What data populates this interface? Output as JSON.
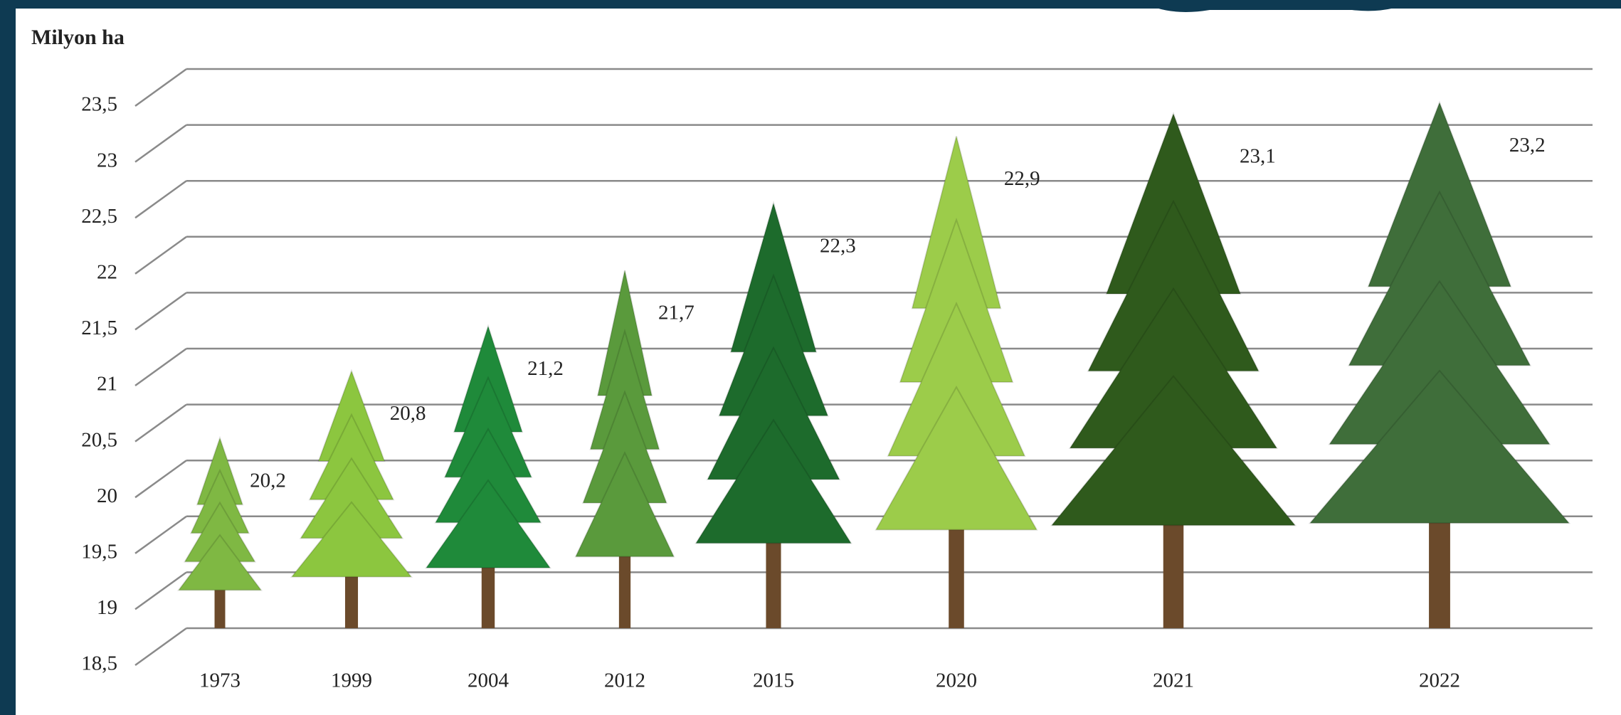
{
  "chart_data": {
    "type": "bar",
    "y_axis_label": "Milyon ha",
    "categories": [
      "1973",
      "1999",
      "2004",
      "2012",
      "2015",
      "2020",
      "2021",
      "2022"
    ],
    "values": [
      20.2,
      20.8,
      21.2,
      21.7,
      22.3,
      22.9,
      23.1,
      23.2
    ],
    "value_labels": [
      "20,2",
      "20,8",
      "21,2",
      "21,7",
      "22,3",
      "22,9",
      "23,1",
      "23,2"
    ],
    "colors": [
      "#7fb843",
      "#8cc63f",
      "#1f8a3a",
      "#5a9a3c",
      "#1d6b2c",
      "#9ccc4a",
      "#2f5a1c",
      "#3f6e3a"
    ],
    "ylim": [
      18.5,
      23.5
    ],
    "yticks": [
      {
        "value": 18.5,
        "label": "18,5"
      },
      19,
      {
        "value": 19.5,
        "label": "19,5"
      },
      20,
      {
        "value": 20.5,
        "label": "20,5"
      },
      21,
      {
        "value": 21.5,
        "label": "21,5"
      },
      22,
      {
        "value": 22.5,
        "label": "22,5"
      },
      23,
      {
        "value": 23.5,
        "label": "23,5"
      }
    ],
    "grid": true
  }
}
